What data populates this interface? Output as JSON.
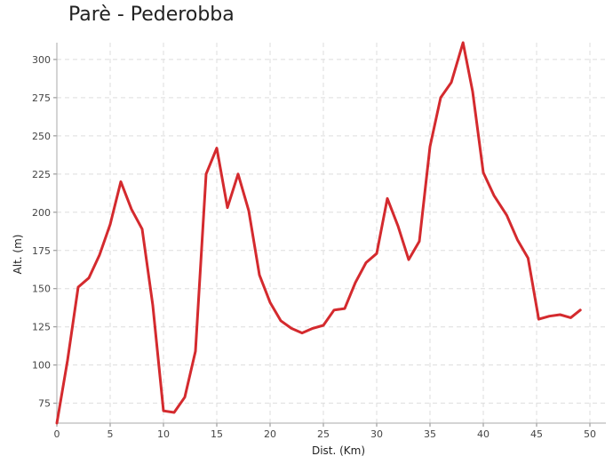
{
  "chart_data": {
    "type": "line",
    "title": "Parè - Pederobba",
    "xlabel": "Dist. (Km)",
    "ylabel": "Alt. (m)",
    "xlim": [
      0,
      51.5
    ],
    "ylim": [
      62,
      311
    ],
    "x_ticks": [
      0,
      5,
      10,
      15,
      20,
      25,
      30,
      35,
      40,
      45,
      50
    ],
    "y_ticks": [
      75,
      100,
      125,
      150,
      175,
      200,
      225,
      250,
      275,
      300
    ],
    "grid": true,
    "line_color": "#d42a2e",
    "series": [
      {
        "x": [
          0,
          1,
          2,
          3,
          4,
          5,
          6,
          7,
          8,
          9,
          10,
          11,
          12,
          13,
          14,
          15,
          16,
          17,
          18,
          19,
          20,
          21,
          22,
          23,
          24,
          25,
          26,
          27,
          28,
          29,
          30,
          31,
          32,
          33,
          34,
          35,
          36,
          37,
          38.1,
          39,
          40,
          41,
          42.2,
          43.2,
          44.2,
          45.2,
          46.2,
          47.2,
          48.2,
          49.1
        ],
        "values": [
          62,
          103,
          151,
          157,
          172,
          192,
          220,
          202,
          189,
          139,
          70,
          69,
          79,
          109,
          225,
          242,
          203,
          225,
          201,
          159,
          141,
          129,
          124,
          121,
          124,
          126,
          136,
          137,
          154,
          167,
          173,
          209,
          191,
          169,
          181,
          243,
          275,
          285,
          311,
          279,
          226,
          211,
          198,
          182,
          170,
          130,
          132,
          133,
          131,
          136
        ]
      }
    ]
  }
}
